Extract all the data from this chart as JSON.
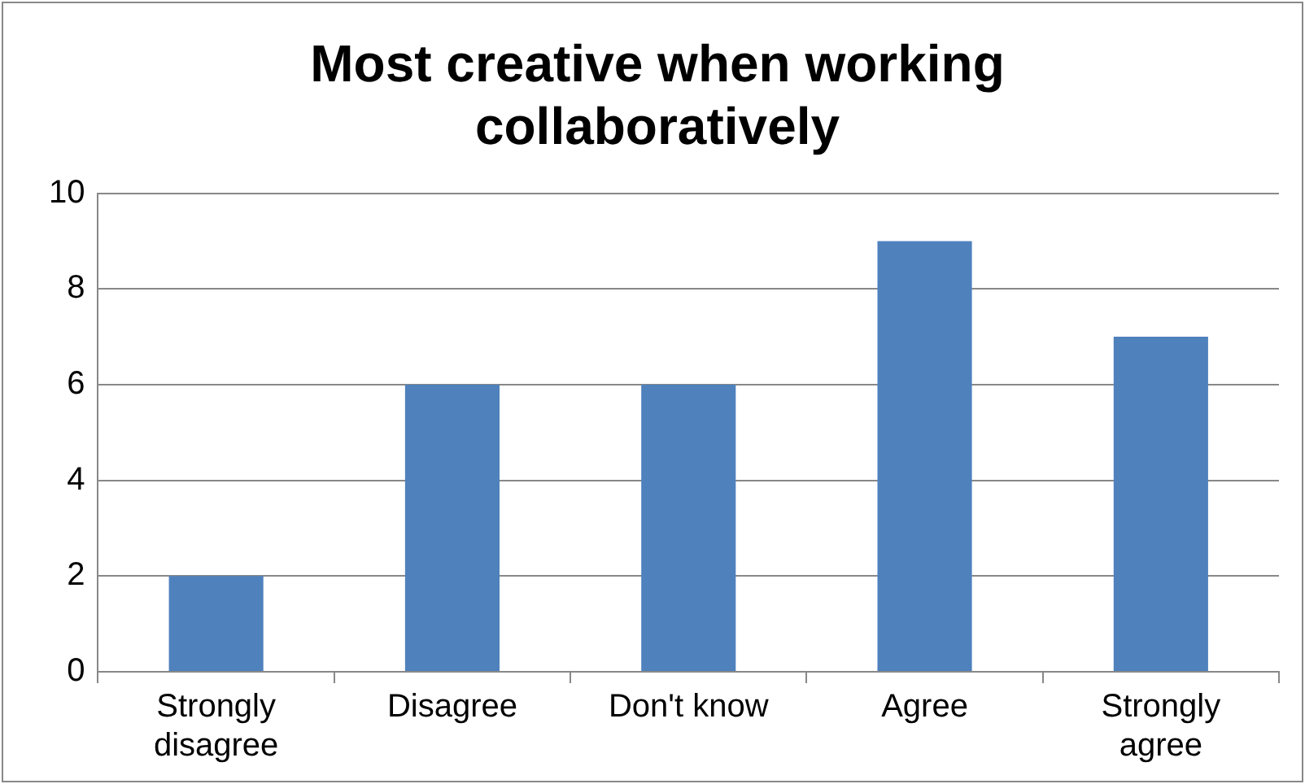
{
  "chart_data": {
    "type": "bar",
    "title": "Most creative when working collaboratively",
    "categories": [
      "Strongly disagree",
      "Disagree",
      "Don't know",
      "Agree",
      "Strongly agree"
    ],
    "values": [
      2,
      6,
      6,
      9,
      7
    ],
    "color": "#4f81bd",
    "ylim": [
      0,
      10
    ],
    "yticks": [
      0,
      2,
      4,
      6,
      8,
      10
    ],
    "grid": "y"
  }
}
